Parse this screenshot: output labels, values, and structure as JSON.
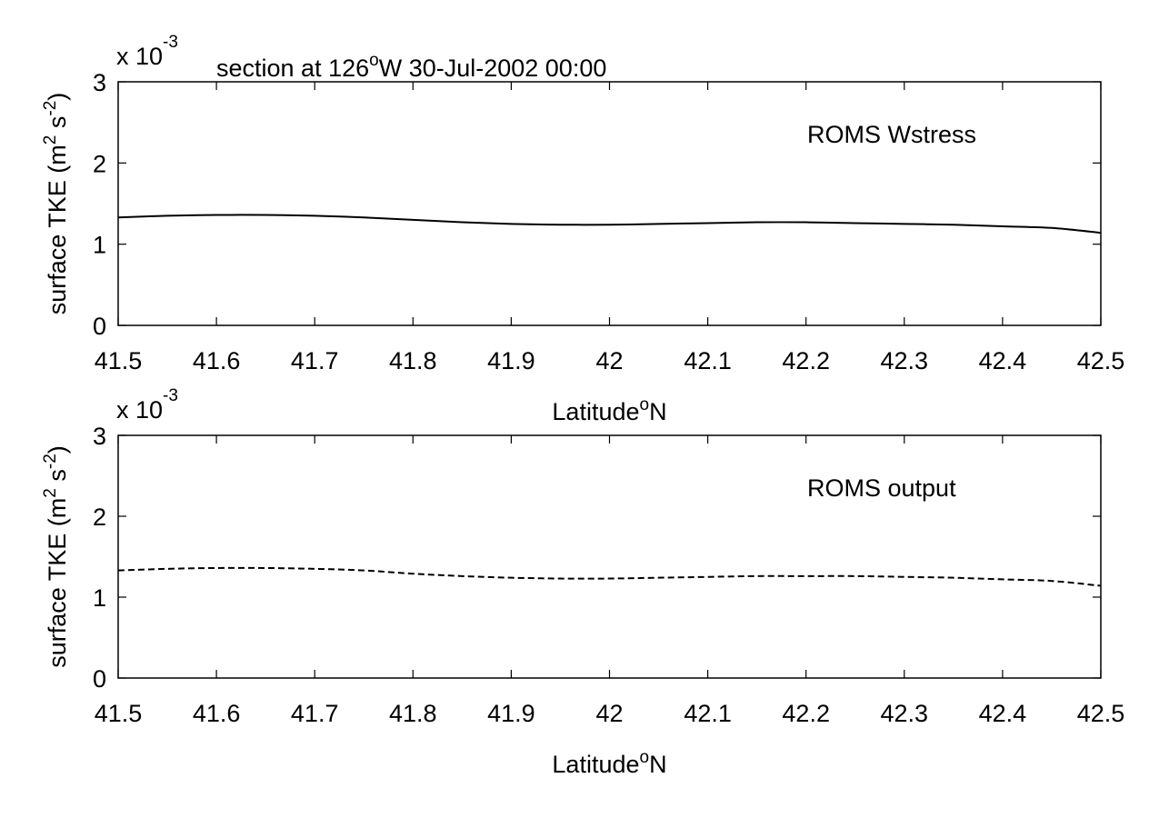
{
  "figure": {
    "title_prefix": "section at 126",
    "title_degree": "o",
    "title_suffix": "W 30-Jul-2002 00:00"
  },
  "chart_data": [
    {
      "type": "line",
      "annotation": "ROMS Wstress",
      "xlabel_main": "Latitude",
      "xlabel_super": "o",
      "xlabel_end": "N",
      "ylabel": {
        "prefix": "surface TKE (m",
        "sup1": "2",
        "mid": " s",
        "sup2": "-2",
        "suffix": ")"
      },
      "exponent_label": {
        "base": "x 10",
        "power": "-3"
      },
      "xlim": [
        41.5,
        42.5
      ],
      "ylim": [
        0,
        3
      ],
      "xticks": [
        "41.5",
        "41.6",
        "41.7",
        "41.8",
        "41.9",
        "42",
        "42.1",
        "42.2",
        "42.3",
        "42.4",
        "42.5"
      ],
      "yticks": [
        "0",
        "1",
        "2",
        "3"
      ],
      "line_style": "solid",
      "grid": false,
      "x": [
        41.5,
        41.55,
        41.6,
        41.65,
        41.7,
        41.75,
        41.8,
        41.85,
        41.9,
        41.95,
        42.0,
        42.05,
        42.1,
        42.15,
        42.2,
        42.25,
        42.3,
        42.35,
        42.4,
        42.45,
        42.5
      ],
      "values": [
        1.33,
        1.35,
        1.36,
        1.36,
        1.35,
        1.33,
        1.3,
        1.27,
        1.25,
        1.24,
        1.24,
        1.25,
        1.26,
        1.27,
        1.27,
        1.26,
        1.25,
        1.24,
        1.22,
        1.2,
        1.14
      ]
    },
    {
      "type": "line",
      "annotation": "ROMS output",
      "xlabel_main": "Latitude",
      "xlabel_super": "o",
      "xlabel_end": "N",
      "ylabel": {
        "prefix": "surface TKE (m",
        "sup1": "2",
        "mid": " s",
        "sup2": "-2",
        "suffix": ")"
      },
      "exponent_label": {
        "base": "x 10",
        "power": "-3"
      },
      "xlim": [
        41.5,
        42.5
      ],
      "ylim": [
        0,
        3
      ],
      "xticks": [
        "41.5",
        "41.6",
        "41.7",
        "41.8",
        "41.9",
        "42",
        "42.1",
        "42.2",
        "42.3",
        "42.4",
        "42.5"
      ],
      "yticks": [
        "0",
        "1",
        "2",
        "3"
      ],
      "line_style": "dashed",
      "grid": false,
      "x": [
        41.5,
        41.55,
        41.6,
        41.65,
        41.7,
        41.75,
        41.8,
        41.85,
        41.9,
        41.95,
        42.0,
        42.05,
        42.1,
        42.15,
        42.2,
        42.25,
        42.3,
        42.35,
        42.4,
        42.45,
        42.5
      ],
      "values": [
        1.33,
        1.35,
        1.36,
        1.36,
        1.35,
        1.33,
        1.29,
        1.26,
        1.24,
        1.23,
        1.23,
        1.24,
        1.25,
        1.26,
        1.26,
        1.26,
        1.25,
        1.24,
        1.22,
        1.2,
        1.14
      ]
    }
  ]
}
